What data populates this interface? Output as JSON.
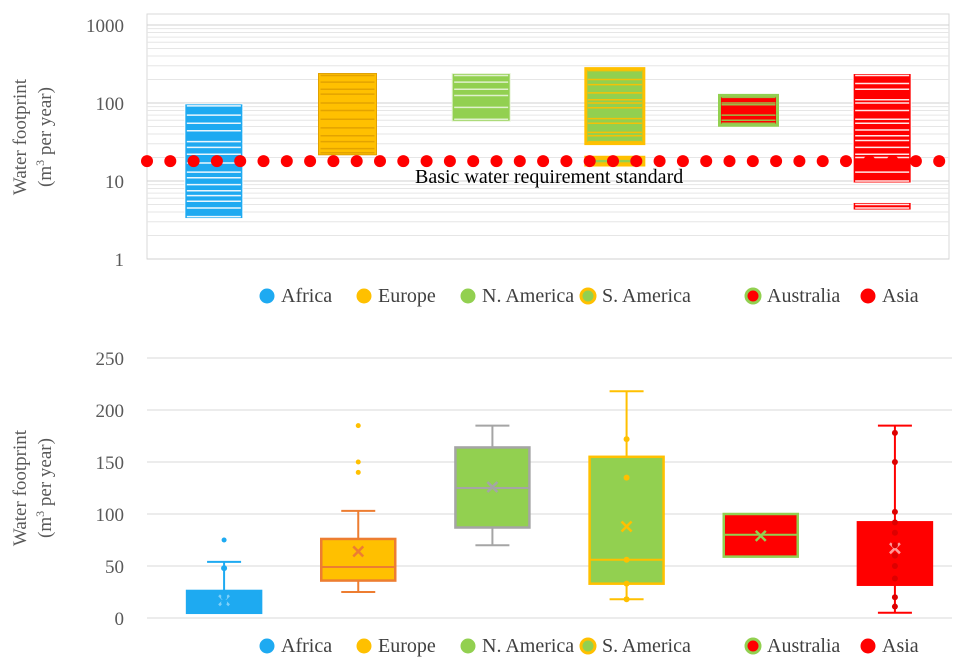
{
  "chart_data": [
    {
      "type": "box",
      "yscale": "log",
      "ylim": [
        1,
        1000
      ],
      "ylabel": "Water footprint",
      "ylabel_unit": "(m3 per year)",
      "yticks": [
        "1",
        "10",
        "100",
        "1000"
      ],
      "grid": "minor-log",
      "legend_position": "bottom",
      "reference_line": {
        "value": 18,
        "label": "Basic water requirement standard",
        "color": "#ff0000"
      },
      "categories": [
        "Africa",
        "Europe",
        "N. America",
        "S. America",
        "Australia",
        "Asia"
      ],
      "series": [
        {
          "name": "Africa",
          "color": "#1eaaf1",
          "values": [
            3.5,
            4.5,
            5.5,
            6.5,
            7.5,
            9,
            11,
            13,
            17,
            22,
            27,
            32,
            44,
            55,
            70,
            92
          ]
        },
        {
          "name": "Europe",
          "color": "#ffc000",
          "values": [
            23,
            26,
            32,
            38,
            48,
            62,
            80,
            100,
            130,
            150,
            185,
            225
          ]
        },
        {
          "name": "N. America",
          "color": "#92d050",
          "values": [
            62,
            88,
            125,
            150,
            185,
            225
          ]
        },
        {
          "name": "S. America",
          "color": "#92d050",
          "values": [
            17,
            19,
            32,
            38,
            42,
            55,
            63,
            87,
            100,
            110,
            135,
            172,
            200,
            260
          ]
        },
        {
          "name": "Australia",
          "color": "#ff0000",
          "values": [
            55,
            60,
            70,
            95,
            100,
            118
          ]
        },
        {
          "name": "Asia",
          "color": "#ff0000",
          "values": [
            4.5,
            5,
            10,
            13,
            20,
            22,
            27,
            33,
            38,
            45,
            55,
            62,
            80,
            100,
            110,
            150,
            178,
            225
          ]
        }
      ]
    },
    {
      "type": "box",
      "ylim": [
        0,
        250
      ],
      "ylabel": "Water footprint",
      "ylabel_unit": "(m3 per year)",
      "yticks": [
        "0",
        "50",
        "100",
        "150",
        "200",
        "250"
      ],
      "grid": "horizontal",
      "legend_position": "bottom",
      "categories": [
        "Africa",
        "Europe",
        "N. America",
        "S. America",
        "Australia",
        "Asia"
      ],
      "series": [
        {
          "name": "Africa",
          "color": "#1eaaf1",
          "box": {
            "whisker_low": 5,
            "q1": 5,
            "median": 12,
            "q3": 26,
            "whisker_high": 54,
            "mean": 17
          },
          "outliers": [
            75
          ],
          "points": [
            48,
            20,
            15,
            10,
            7
          ]
        },
        {
          "name": "Europe",
          "color": "#ffc000",
          "box": {
            "whisker_low": 25,
            "q1": 36,
            "median": 49,
            "q3": 76,
            "whisker_high": 103,
            "mean": 64
          },
          "outliers": [
            185,
            150,
            140
          ],
          "points": []
        },
        {
          "name": "N. America",
          "color": "#92d050",
          "box": {
            "whisker_low": 70,
            "q1": 87,
            "median": 125,
            "q3": 164,
            "whisker_high": 185,
            "mean": 126
          },
          "outliers": [],
          "points": []
        },
        {
          "name": "S. America",
          "color": "#92d050",
          "box": {
            "whisker_low": 18,
            "q1": 33,
            "median": 56,
            "q3": 155,
            "whisker_high": 218,
            "mean": 88
          },
          "outliers": [],
          "points": [
            172,
            135,
            56,
            33,
            18
          ]
        },
        {
          "name": "Australia",
          "color": "#ff0000",
          "box": {
            "whisker_low": 59,
            "q1": 59,
            "median": 80,
            "q3": 100,
            "whisker_high": 100,
            "mean": 79
          },
          "outliers": [],
          "points": []
        },
        {
          "name": "Asia",
          "color": "#ff0000",
          "box": {
            "whisker_low": 5,
            "q1": 32,
            "median": 55,
            "q3": 92,
            "whisker_high": 185,
            "mean": 67
          },
          "outliers": [],
          "points": [
            178,
            150,
            102,
            92,
            82,
            70,
            60,
            50,
            38,
            20,
            11
          ]
        }
      ]
    }
  ],
  "legend": [
    {
      "label": "Africa",
      "fill": "#1eaaf1",
      "ring": "#1eaaf1"
    },
    {
      "label": "Europe",
      "fill": "#ffc000",
      "ring": "#ffc000"
    },
    {
      "label": "N. America",
      "fill": "#92d050",
      "ring": "#92d050"
    },
    {
      "label": "S. America",
      "fill": "#92d050",
      "ring": "#ffc000"
    },
    {
      "label": "Australia",
      "fill": "#ff0000",
      "ring": "#92d050"
    },
    {
      "label": "Asia",
      "fill": "#ff0000",
      "ring": "#ff0000"
    }
  ]
}
